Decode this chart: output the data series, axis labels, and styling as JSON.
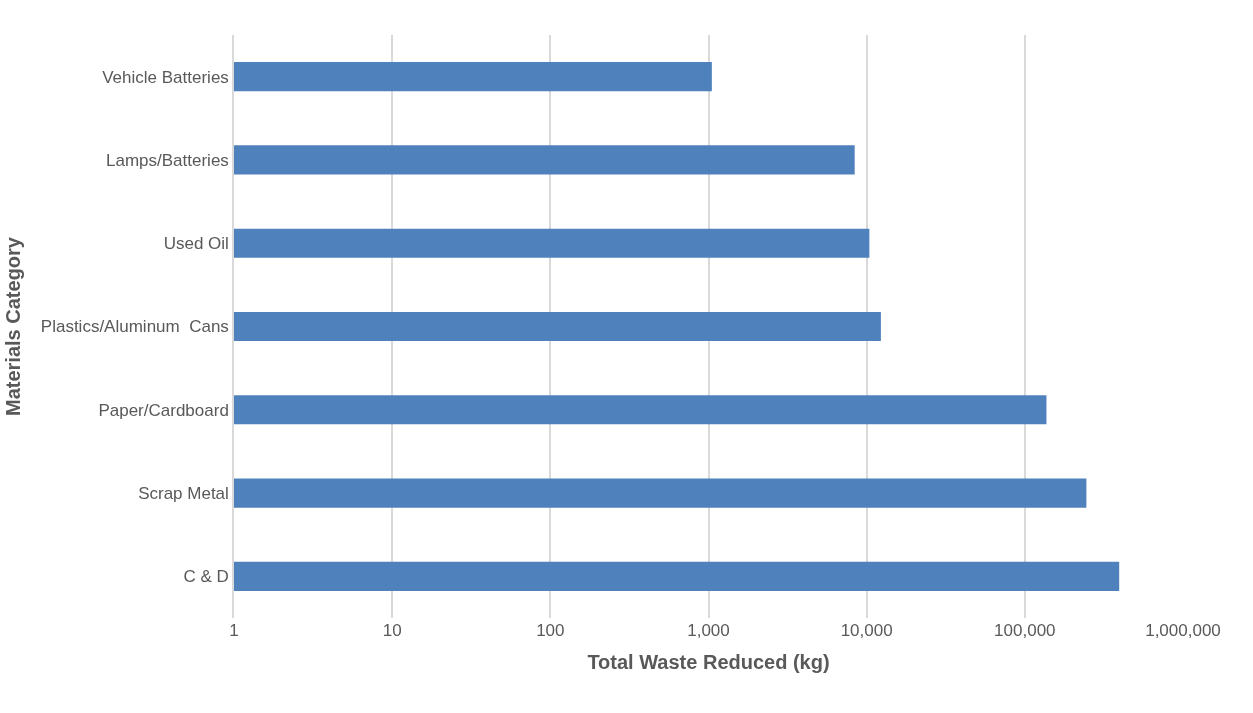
{
  "chart_data": {
    "type": "bar",
    "orientation": "horizontal",
    "xlabel": "Total Waste Reduced (kg)",
    "ylabel": "Materials Category",
    "categories": [
      "Vehicle Batteries",
      "Lamps/Batteries",
      "Used Oil",
      "Plastics/Aluminum  Cans",
      "Paper/Cardboard",
      "Scrap Metal",
      "C & D"
    ],
    "values": [
      1050,
      8400,
      10400,
      12300,
      137000,
      245000,
      395000
    ],
    "color": "#4f81bd",
    "log": "x",
    "xlim": [
      1,
      1000000
    ],
    "xticks": [
      1,
      10,
      100,
      {
        "value": 1000,
        "label": "1,000"
      },
      {
        "value": 10000,
        "label": "10,000"
      },
      {
        "value": 100000,
        "label": "100,000"
      },
      {
        "value": 1000000,
        "label": "1,000,000"
      }
    ],
    "grid": "x"
  }
}
